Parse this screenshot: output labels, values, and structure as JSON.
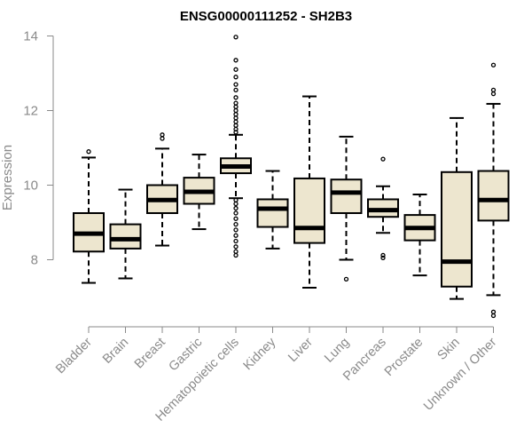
{
  "chart_data": {
    "type": "boxplot",
    "title": "ENSG00000111252 - SH2B3",
    "xlabel": "",
    "ylabel": "Expression",
    "ylim": [
      6.5,
      14.0
    ],
    "yticks": [
      8,
      10,
      12,
      14
    ],
    "box_fill": "#ede6cf",
    "categories": [
      "Bladder",
      "Brain",
      "Breast",
      "Gastric",
      "Hematopoietic cells",
      "Kidney",
      "Liver",
      "Lung",
      "Pancreas",
      "Prostate",
      "Skin",
      "Unknown / Other"
    ],
    "boxes": [
      {
        "category": "Bladder",
        "whisker_low": 7.38,
        "q1": 8.22,
        "median": 8.7,
        "q3": 9.25,
        "whisker_high": 10.74,
        "outliers": [
          10.9
        ]
      },
      {
        "category": "Brain",
        "whisker_low": 7.5,
        "q1": 8.3,
        "median": 8.55,
        "q3": 8.95,
        "whisker_high": 9.88,
        "outliers": []
      },
      {
        "category": "Breast",
        "whisker_low": 8.38,
        "q1": 9.25,
        "median": 9.6,
        "q3": 10.0,
        "whisker_high": 10.98,
        "outliers": [
          11.25,
          11.35
        ]
      },
      {
        "category": "Gastric",
        "whisker_low": 8.82,
        "q1": 9.5,
        "median": 9.82,
        "q3": 10.2,
        "whisker_high": 10.82,
        "outliers": []
      },
      {
        "category": "Hematopoietic cells",
        "whisker_low": 9.65,
        "q1": 10.32,
        "median": 10.5,
        "q3": 10.72,
        "whisker_high": 11.35,
        "outliers": [
          8.12,
          8.22,
          8.35,
          8.5,
          8.65,
          8.8,
          8.95,
          9.1,
          9.25,
          9.38,
          9.5,
          9.6,
          11.42,
          11.5,
          11.6,
          11.7,
          11.8,
          11.9,
          12.0,
          12.1,
          12.2,
          12.35,
          12.55,
          12.7,
          12.9,
          13.1,
          13.35,
          13.97
        ]
      },
      {
        "category": "Kidney",
        "whisker_low": 8.3,
        "q1": 8.88,
        "median": 9.37,
        "q3": 9.62,
        "whisker_high": 10.38,
        "outliers": []
      },
      {
        "category": "Liver",
        "whisker_low": 7.25,
        "q1": 8.45,
        "median": 8.85,
        "q3": 10.18,
        "whisker_high": 12.38,
        "outliers": []
      },
      {
        "category": "Lung",
        "whisker_low": 8.0,
        "q1": 9.25,
        "median": 9.8,
        "q3": 10.15,
        "whisker_high": 11.3,
        "outliers": [
          7.48
        ]
      },
      {
        "category": "Pancreas",
        "whisker_low": 8.72,
        "q1": 9.15,
        "median": 9.33,
        "q3": 9.62,
        "whisker_high": 9.97,
        "outliers": [
          8.05,
          8.12,
          10.7
        ]
      },
      {
        "category": "Prostate",
        "whisker_low": 7.58,
        "q1": 8.52,
        "median": 8.85,
        "q3": 9.2,
        "whisker_high": 9.75,
        "outliers": []
      },
      {
        "category": "Skin",
        "whisker_low": 6.95,
        "q1": 7.28,
        "median": 7.95,
        "q3": 10.35,
        "whisker_high": 11.8,
        "outliers": []
      },
      {
        "category": "Unknown / Other",
        "whisker_low": 7.05,
        "q1": 9.05,
        "median": 9.6,
        "q3": 10.38,
        "whisker_high": 12.18,
        "outliers": [
          6.5,
          6.6,
          12.45,
          12.55,
          13.22
        ]
      }
    ]
  }
}
